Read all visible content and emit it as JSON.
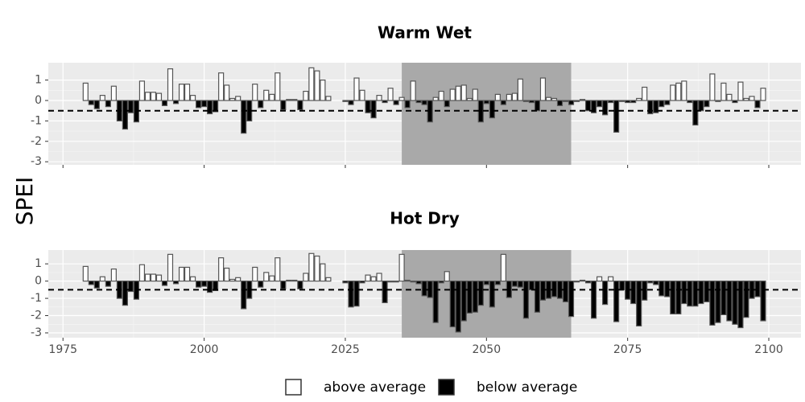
{
  "y_label": "SPEI",
  "legend": [
    {
      "name": "above average",
      "color": "#ffffff"
    },
    {
      "name": "below average",
      "color": "#000000"
    }
  ],
  "chart_data": [
    {
      "type": "bar",
      "title": "Warm Wet",
      "x": [
        1979,
        1980,
        1981,
        1982,
        1983,
        1984,
        1985,
        1986,
        1987,
        1988,
        1989,
        1990,
        1991,
        1992,
        1993,
        1994,
        1995,
        1996,
        1997,
        1998,
        1999,
        2000,
        2001,
        2002,
        2003,
        2004,
        2005,
        2006,
        2007,
        2008,
        2009,
        2010,
        2011,
        2012,
        2013,
        2014,
        2015,
        2016,
        2017,
        2018,
        2019,
        2020,
        2021,
        2022,
        2025,
        2026,
        2027,
        2028,
        2029,
        2030,
        2031,
        2032,
        2033,
        2034,
        2035,
        2036,
        2037,
        2038,
        2039,
        2040,
        2041,
        2042,
        2043,
        2044,
        2045,
        2046,
        2047,
        2048,
        2049,
        2050,
        2051,
        2052,
        2053,
        2054,
        2055,
        2056,
        2057,
        2058,
        2059,
        2060,
        2061,
        2062,
        2063,
        2064,
        2065,
        2066,
        2067,
        2068,
        2069,
        2070,
        2071,
        2072,
        2073,
        2074,
        2075,
        2076,
        2077,
        2078,
        2079,
        2080,
        2081,
        2082,
        2083,
        2084,
        2085,
        2086,
        2087,
        2088,
        2089,
        2090,
        2091,
        2092,
        2093,
        2094,
        2095,
        2096,
        2097,
        2098,
        2099
      ],
      "values": [
        0.85,
        -0.2,
        -0.4,
        0.25,
        -0.3,
        0.7,
        -1.0,
        -1.4,
        -0.6,
        -1.05,
        0.95,
        0.4,
        0.4,
        0.35,
        -0.25,
        1.55,
        -0.15,
        0.8,
        0.8,
        0.25,
        -0.35,
        -0.3,
        -0.65,
        -0.55,
        1.35,
        0.75,
        0.1,
        0.2,
        -1.6,
        -1.0,
        0.8,
        -0.35,
        0.5,
        0.3,
        1.35,
        -0.45,
        0.05,
        0.05,
        -0.45,
        0.45,
        1.6,
        1.45,
        1.0,
        0.2,
        -0.05,
        -0.2,
        1.1,
        0.5,
        -0.6,
        -0.85,
        0.25,
        -0.1,
        0.6,
        -0.2,
        0.15,
        -0.35,
        0.95,
        -0.1,
        -0.2,
        -1.05,
        0.15,
        0.45,
        -0.3,
        0.55,
        0.7,
        0.75,
        0.1,
        0.55,
        -1.05,
        -0.15,
        -0.85,
        0.3,
        -0.2,
        0.3,
        0.35,
        1.05,
        -0.05,
        -0.1,
        -0.5,
        1.1,
        0.15,
        0.1,
        -0.25,
        -0.05,
        -0.2,
        -0.05,
        0.05,
        -0.5,
        -0.6,
        -0.3,
        -0.7,
        -0.1,
        -1.55,
        -0.05,
        -0.1,
        -0.1,
        0.1,
        0.65,
        -0.65,
        -0.6,
        -0.3,
        -0.2,
        0.75,
        0.85,
        0.95,
        -0.1,
        -1.2,
        -0.5,
        -0.3,
        1.3,
        -0.05,
        0.85,
        0.3,
        -0.1,
        0.9,
        0.1,
        0.2,
        -0.35,
        0.6
      ],
      "xlim": [
        1972.4,
        2105.7
      ],
      "xticks": [
        1975,
        2000,
        2025,
        2050,
        2075,
        2100
      ],
      "xtick_labels": false,
      "ylim": [
        -3.15,
        1.85
      ],
      "yticks": [
        -3,
        -2,
        -1,
        0,
        1
      ],
      "grid": true,
      "shade": [
        2035,
        2065
      ],
      "threshold": -0.5
    },
    {
      "type": "bar",
      "title": "Hot Dry",
      "x": [
        1979,
        1980,
        1981,
        1982,
        1983,
        1984,
        1985,
        1986,
        1987,
        1988,
        1989,
        1990,
        1991,
        1992,
        1993,
        1994,
        1995,
        1996,
        1997,
        1998,
        1999,
        2000,
        2001,
        2002,
        2003,
        2004,
        2005,
        2006,
        2007,
        2008,
        2009,
        2010,
        2011,
        2012,
        2013,
        2014,
        2015,
        2016,
        2017,
        2018,
        2019,
        2020,
        2021,
        2022,
        2025,
        2026,
        2027,
        2028,
        2029,
        2030,
        2031,
        2032,
        2033,
        2034,
        2035,
        2036,
        2037,
        2038,
        2039,
        2040,
        2041,
        2042,
        2043,
        2044,
        2045,
        2046,
        2047,
        2048,
        2049,
        2050,
        2051,
        2052,
        2053,
        2054,
        2055,
        2056,
        2057,
        2058,
        2059,
        2060,
        2061,
        2062,
        2063,
        2064,
        2065,
        2066,
        2067,
        2068,
        2069,
        2070,
        2071,
        2072,
        2073,
        2074,
        2075,
        2076,
        2077,
        2078,
        2079,
        2080,
        2081,
        2082,
        2083,
        2084,
        2085,
        2086,
        2087,
        2088,
        2089,
        2090,
        2091,
        2092,
        2093,
        2094,
        2095,
        2096,
        2097,
        2098,
        2099
      ],
      "values": [
        0.85,
        -0.2,
        -0.4,
        0.25,
        -0.3,
        0.7,
        -1.0,
        -1.4,
        -0.6,
        -1.05,
        0.95,
        0.4,
        0.4,
        0.35,
        -0.25,
        1.55,
        -0.15,
        0.8,
        0.8,
        0.25,
        -0.35,
        -0.3,
        -0.65,
        -0.55,
        1.35,
        0.75,
        0.1,
        0.2,
        -1.6,
        -1.0,
        0.8,
        -0.35,
        0.5,
        0.3,
        1.35,
        -0.45,
        0.05,
        0.05,
        -0.45,
        0.45,
        1.6,
        1.45,
        1.0,
        0.2,
        -0.1,
        -1.5,
        -1.45,
        -0.1,
        0.35,
        0.25,
        0.45,
        -1.25,
        -0.05,
        -0.05,
        1.55,
        0.05,
        -0.05,
        -0.15,
        -0.85,
        -0.95,
        -2.4,
        -0.1,
        0.55,
        -2.65,
        -2.95,
        -2.3,
        -1.85,
        -1.8,
        -1.4,
        -0.2,
        -1.5,
        -0.2,
        1.55,
        -0.95,
        -0.3,
        -0.35,
        -2.15,
        -0.5,
        -1.8,
        -1.1,
        -1.0,
        -0.9,
        -1.0,
        -1.2,
        -2.05,
        -0.05,
        0.05,
        -0.1,
        -2.15,
        0.25,
        -1.35,
        0.25,
        -2.35,
        -0.5,
        -1.05,
        -1.3,
        -2.6,
        -1.1,
        -0.1,
        -0.2,
        -0.85,
        -0.9,
        -1.9,
        -1.9,
        -1.3,
        -1.45,
        -1.45,
        -1.3,
        -1.2,
        -2.55,
        -2.4,
        -1.95,
        -2.3,
        -2.5,
        -2.7,
        -2.1,
        -1.0,
        -0.9,
        -2.3
      ],
      "xlim": [
        1972.4,
        2105.7
      ],
      "xticks": [
        1975,
        2000,
        2025,
        2050,
        2075,
        2100
      ],
      "xtick_labels": true,
      "ylim": [
        -3.28,
        1.8
      ],
      "yticks": [
        -3,
        -2,
        -1,
        0,
        1
      ],
      "grid": true,
      "shade": [
        2035,
        2065
      ],
      "threshold": -0.5
    }
  ]
}
